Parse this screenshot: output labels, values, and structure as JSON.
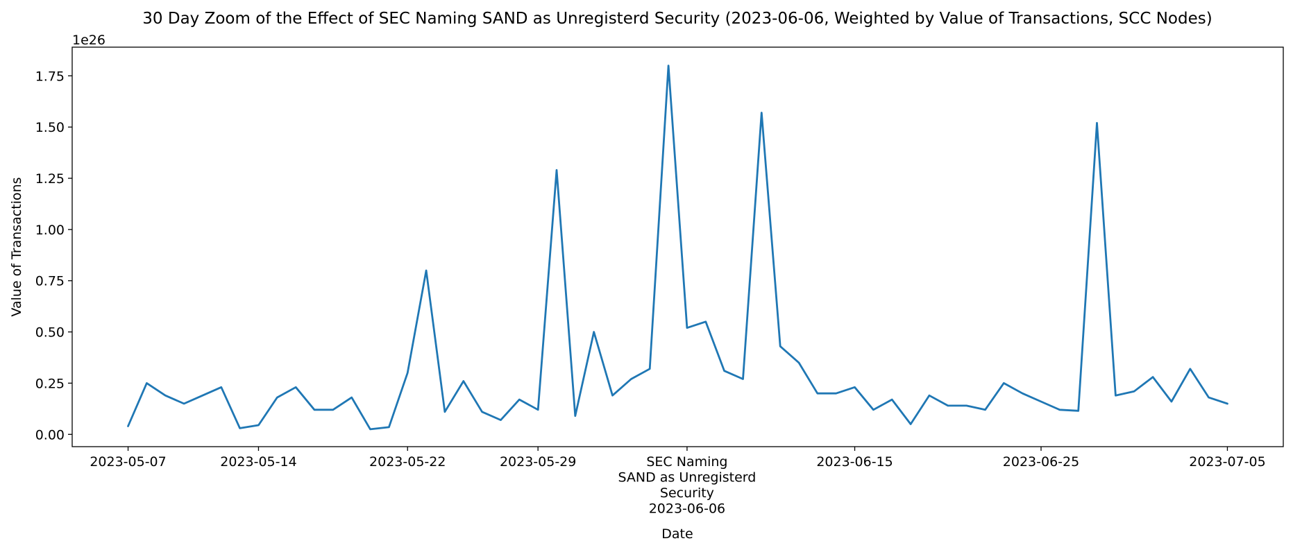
{
  "chart_data": {
    "type": "line",
    "title": "30 Day Zoom of the Effect of SEC Naming SAND as Unregisterd Security (2023-06-06, Weighted by Value of Transactions, SCC Nodes)",
    "xlabel": "Date",
    "ylabel": "Value of Transactions",
    "y_offset_label": "1e26",
    "y_scale_multiplier": 1e+26,
    "xlim": [
      "2023-05-04",
      "2023-07-08"
    ],
    "ylim": [
      -0.06,
      1.89
    ],
    "grid": false,
    "line_color": "#1f77b4",
    "x_ticks": [
      {
        "date": "2023-05-07",
        "label": "2023-05-07"
      },
      {
        "date": "2023-05-14",
        "label": "2023-05-14"
      },
      {
        "date": "2023-05-22",
        "label": "2023-05-22"
      },
      {
        "date": "2023-05-29",
        "label": "2023-05-29"
      },
      {
        "date": "2023-06-06",
        "label": "SEC Naming\nSAND as Unregisterd\nSecurity\n2023-06-06"
      },
      {
        "date": "2023-06-15",
        "label": "2023-06-15"
      },
      {
        "date": "2023-06-25",
        "label": "2023-06-25"
      },
      {
        "date": "2023-07-05",
        "label": "2023-07-05"
      }
    ],
    "y_ticks": [
      {
        "value": 0.0,
        "label": "0.00"
      },
      {
        "value": 0.25,
        "label": "0.25"
      },
      {
        "value": 0.5,
        "label": "0.50"
      },
      {
        "value": 0.75,
        "label": "0.75"
      },
      {
        "value": 1.0,
        "label": "1.00"
      },
      {
        "value": 1.25,
        "label": "1.25"
      },
      {
        "value": 1.5,
        "label": "1.50"
      },
      {
        "value": 1.75,
        "label": "1.75"
      }
    ],
    "series": [
      {
        "x": [
          "2023-05-07",
          "2023-05-08",
          "2023-05-09",
          "2023-05-10",
          "2023-05-11",
          "2023-05-12",
          "2023-05-13",
          "2023-05-14",
          "2023-05-15",
          "2023-05-16",
          "2023-05-17",
          "2023-05-18",
          "2023-05-19",
          "2023-05-20",
          "2023-05-21",
          "2023-05-22",
          "2023-05-23",
          "2023-05-24",
          "2023-05-25",
          "2023-05-26",
          "2023-05-27",
          "2023-05-28",
          "2023-05-29",
          "2023-05-30",
          "2023-05-31",
          "2023-06-01",
          "2023-06-02",
          "2023-06-03",
          "2023-06-04",
          "2023-06-05",
          "2023-06-06",
          "2023-06-07",
          "2023-06-08",
          "2023-06-09",
          "2023-06-10",
          "2023-06-11",
          "2023-06-12",
          "2023-06-13",
          "2023-06-14",
          "2023-06-15",
          "2023-06-16",
          "2023-06-17",
          "2023-06-18",
          "2023-06-19",
          "2023-06-20",
          "2023-06-21",
          "2023-06-22",
          "2023-06-23",
          "2023-06-24",
          "2023-06-25",
          "2023-06-26",
          "2023-06-27",
          "2023-06-28",
          "2023-06-29",
          "2023-06-30",
          "2023-07-01",
          "2023-07-02",
          "2023-07-03",
          "2023-07-04",
          "2023-07-05"
        ],
        "y": [
          0.04,
          0.25,
          0.19,
          0.15,
          0.19,
          0.23,
          0.03,
          0.045,
          0.18,
          0.23,
          0.12,
          0.12,
          0.18,
          0.025,
          0.035,
          0.3,
          0.8,
          0.11,
          0.26,
          0.11,
          0.07,
          0.17,
          0.12,
          1.29,
          0.09,
          0.5,
          0.19,
          0.27,
          0.32,
          1.8,
          0.52,
          0.55,
          0.31,
          0.27,
          1.57,
          0.43,
          0.35,
          0.2,
          0.2,
          0.23,
          0.12,
          0.17,
          0.05,
          0.19,
          0.14,
          0.14,
          0.12,
          0.25,
          0.2,
          0.16,
          0.12,
          0.115,
          1.52,
          0.19,
          0.21,
          0.28,
          0.16,
          0.32,
          0.18,
          0.15
        ]
      }
    ]
  }
}
